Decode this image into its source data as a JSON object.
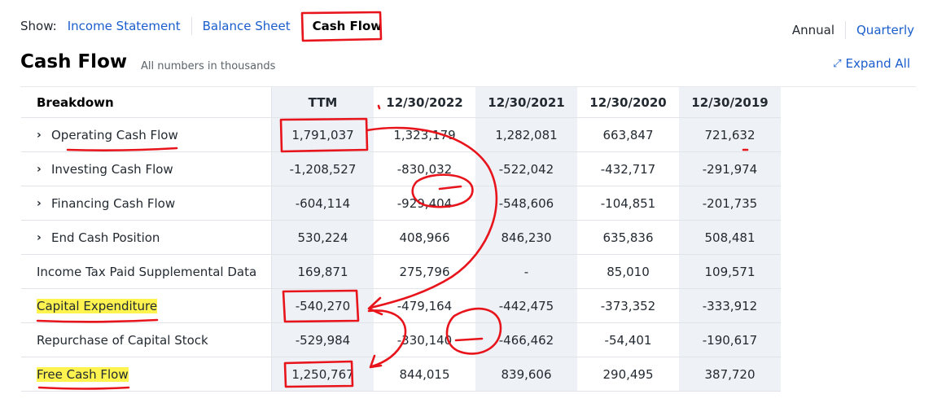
{
  "show": {
    "label": "Show:",
    "income_statement": "Income Statement",
    "balance_sheet": "Balance Sheet",
    "cash_flow": "Cash Flow"
  },
  "period": {
    "annual": "Annual",
    "quarterly": "Quarterly"
  },
  "header": {
    "title": "Cash Flow",
    "note": "All numbers in thousands",
    "expand_all": "Expand All"
  },
  "table": {
    "columns": [
      "Breakdown",
      "TTM",
      "12/30/2022",
      "12/30/2021",
      "12/30/2020",
      "12/30/2019"
    ],
    "rows": [
      {
        "label": "Operating Cash Flow",
        "values": [
          "1,791,037",
          "1,323,179",
          "1,282,081",
          "663,847",
          "721,632"
        ]
      },
      {
        "label": "Investing Cash Flow",
        "values": [
          "-1,208,527",
          "-830,032",
          "-522,042",
          "-432,717",
          "-291,974"
        ]
      },
      {
        "label": "Financing Cash Flow",
        "values": [
          "-604,114",
          "-929,404",
          "-548,606",
          "-104,851",
          "-201,735"
        ]
      },
      {
        "label": "End Cash Position",
        "values": [
          "530,224",
          "408,966",
          "846,230",
          "635,836",
          "508,481"
        ]
      },
      {
        "label": "Income Tax Paid Supplemental Data",
        "values": [
          "169,871",
          "275,796",
          "-",
          "85,010",
          "109,571"
        ]
      },
      {
        "label": "Capital Expenditure",
        "values": [
          "-540,270",
          "-479,164",
          "-442,475",
          "-373,352",
          "-333,912"
        ]
      },
      {
        "label": "Repurchase of Capital Stock",
        "values": [
          "-529,984",
          "-330,140",
          "-466,462",
          "-54,401",
          "-190,617"
        ]
      },
      {
        "label": "Free Cash Flow",
        "values": [
          "1,250,767",
          "844,015",
          "839,606",
          "290,495",
          "387,720"
        ]
      }
    ]
  },
  "colors": {
    "link": "#1a5dcc",
    "highlight": "#fff44f",
    "annotation": "#e8141c",
    "shade": "#eef1f5"
  }
}
